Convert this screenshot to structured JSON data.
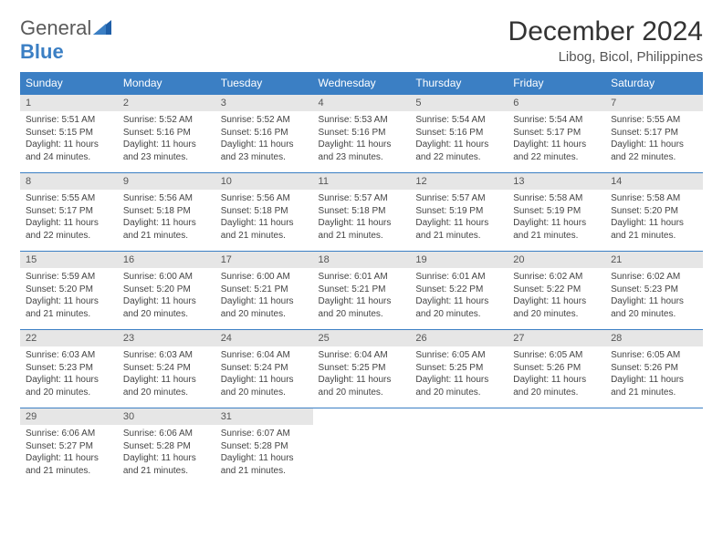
{
  "logo": {
    "text_general": "General",
    "text_blue": "Blue"
  },
  "title": "December 2024",
  "location": "Libog, Bicol, Philippines",
  "colors": {
    "header_blue": "#3b7fc4",
    "daynum_bg": "#e6e6e6",
    "text": "#333333",
    "body_text": "#444444",
    "white": "#ffffff"
  },
  "weekdays": [
    "Sunday",
    "Monday",
    "Tuesday",
    "Wednesday",
    "Thursday",
    "Friday",
    "Saturday"
  ],
  "days": [
    {
      "n": "1",
      "sunrise": "Sunrise: 5:51 AM",
      "sunset": "Sunset: 5:15 PM",
      "daylight": "Daylight: 11 hours and 24 minutes."
    },
    {
      "n": "2",
      "sunrise": "Sunrise: 5:52 AM",
      "sunset": "Sunset: 5:16 PM",
      "daylight": "Daylight: 11 hours and 23 minutes."
    },
    {
      "n": "3",
      "sunrise": "Sunrise: 5:52 AM",
      "sunset": "Sunset: 5:16 PM",
      "daylight": "Daylight: 11 hours and 23 minutes."
    },
    {
      "n": "4",
      "sunrise": "Sunrise: 5:53 AM",
      "sunset": "Sunset: 5:16 PM",
      "daylight": "Daylight: 11 hours and 23 minutes."
    },
    {
      "n": "5",
      "sunrise": "Sunrise: 5:54 AM",
      "sunset": "Sunset: 5:16 PM",
      "daylight": "Daylight: 11 hours and 22 minutes."
    },
    {
      "n": "6",
      "sunrise": "Sunrise: 5:54 AM",
      "sunset": "Sunset: 5:17 PM",
      "daylight": "Daylight: 11 hours and 22 minutes."
    },
    {
      "n": "7",
      "sunrise": "Sunrise: 5:55 AM",
      "sunset": "Sunset: 5:17 PM",
      "daylight": "Daylight: 11 hours and 22 minutes."
    },
    {
      "n": "8",
      "sunrise": "Sunrise: 5:55 AM",
      "sunset": "Sunset: 5:17 PM",
      "daylight": "Daylight: 11 hours and 22 minutes."
    },
    {
      "n": "9",
      "sunrise": "Sunrise: 5:56 AM",
      "sunset": "Sunset: 5:18 PM",
      "daylight": "Daylight: 11 hours and 21 minutes."
    },
    {
      "n": "10",
      "sunrise": "Sunrise: 5:56 AM",
      "sunset": "Sunset: 5:18 PM",
      "daylight": "Daylight: 11 hours and 21 minutes."
    },
    {
      "n": "11",
      "sunrise": "Sunrise: 5:57 AM",
      "sunset": "Sunset: 5:18 PM",
      "daylight": "Daylight: 11 hours and 21 minutes."
    },
    {
      "n": "12",
      "sunrise": "Sunrise: 5:57 AM",
      "sunset": "Sunset: 5:19 PM",
      "daylight": "Daylight: 11 hours and 21 minutes."
    },
    {
      "n": "13",
      "sunrise": "Sunrise: 5:58 AM",
      "sunset": "Sunset: 5:19 PM",
      "daylight": "Daylight: 11 hours and 21 minutes."
    },
    {
      "n": "14",
      "sunrise": "Sunrise: 5:58 AM",
      "sunset": "Sunset: 5:20 PM",
      "daylight": "Daylight: 11 hours and 21 minutes."
    },
    {
      "n": "15",
      "sunrise": "Sunrise: 5:59 AM",
      "sunset": "Sunset: 5:20 PM",
      "daylight": "Daylight: 11 hours and 21 minutes."
    },
    {
      "n": "16",
      "sunrise": "Sunrise: 6:00 AM",
      "sunset": "Sunset: 5:20 PM",
      "daylight": "Daylight: 11 hours and 20 minutes."
    },
    {
      "n": "17",
      "sunrise": "Sunrise: 6:00 AM",
      "sunset": "Sunset: 5:21 PM",
      "daylight": "Daylight: 11 hours and 20 minutes."
    },
    {
      "n": "18",
      "sunrise": "Sunrise: 6:01 AM",
      "sunset": "Sunset: 5:21 PM",
      "daylight": "Daylight: 11 hours and 20 minutes."
    },
    {
      "n": "19",
      "sunrise": "Sunrise: 6:01 AM",
      "sunset": "Sunset: 5:22 PM",
      "daylight": "Daylight: 11 hours and 20 minutes."
    },
    {
      "n": "20",
      "sunrise": "Sunrise: 6:02 AM",
      "sunset": "Sunset: 5:22 PM",
      "daylight": "Daylight: 11 hours and 20 minutes."
    },
    {
      "n": "21",
      "sunrise": "Sunrise: 6:02 AM",
      "sunset": "Sunset: 5:23 PM",
      "daylight": "Daylight: 11 hours and 20 minutes."
    },
    {
      "n": "22",
      "sunrise": "Sunrise: 6:03 AM",
      "sunset": "Sunset: 5:23 PM",
      "daylight": "Daylight: 11 hours and 20 minutes."
    },
    {
      "n": "23",
      "sunrise": "Sunrise: 6:03 AM",
      "sunset": "Sunset: 5:24 PM",
      "daylight": "Daylight: 11 hours and 20 minutes."
    },
    {
      "n": "24",
      "sunrise": "Sunrise: 6:04 AM",
      "sunset": "Sunset: 5:24 PM",
      "daylight": "Daylight: 11 hours and 20 minutes."
    },
    {
      "n": "25",
      "sunrise": "Sunrise: 6:04 AM",
      "sunset": "Sunset: 5:25 PM",
      "daylight": "Daylight: 11 hours and 20 minutes."
    },
    {
      "n": "26",
      "sunrise": "Sunrise: 6:05 AM",
      "sunset": "Sunset: 5:25 PM",
      "daylight": "Daylight: 11 hours and 20 minutes."
    },
    {
      "n": "27",
      "sunrise": "Sunrise: 6:05 AM",
      "sunset": "Sunset: 5:26 PM",
      "daylight": "Daylight: 11 hours and 20 minutes."
    },
    {
      "n": "28",
      "sunrise": "Sunrise: 6:05 AM",
      "sunset": "Sunset: 5:26 PM",
      "daylight": "Daylight: 11 hours and 21 minutes."
    },
    {
      "n": "29",
      "sunrise": "Sunrise: 6:06 AM",
      "sunset": "Sunset: 5:27 PM",
      "daylight": "Daylight: 11 hours and 21 minutes."
    },
    {
      "n": "30",
      "sunrise": "Sunrise: 6:06 AM",
      "sunset": "Sunset: 5:28 PM",
      "daylight": "Daylight: 11 hours and 21 minutes."
    },
    {
      "n": "31",
      "sunrise": "Sunrise: 6:07 AM",
      "sunset": "Sunset: 5:28 PM",
      "daylight": "Daylight: 11 hours and 21 minutes."
    }
  ],
  "layout": {
    "first_weekday_index": 0,
    "trailing_empty": 4
  }
}
